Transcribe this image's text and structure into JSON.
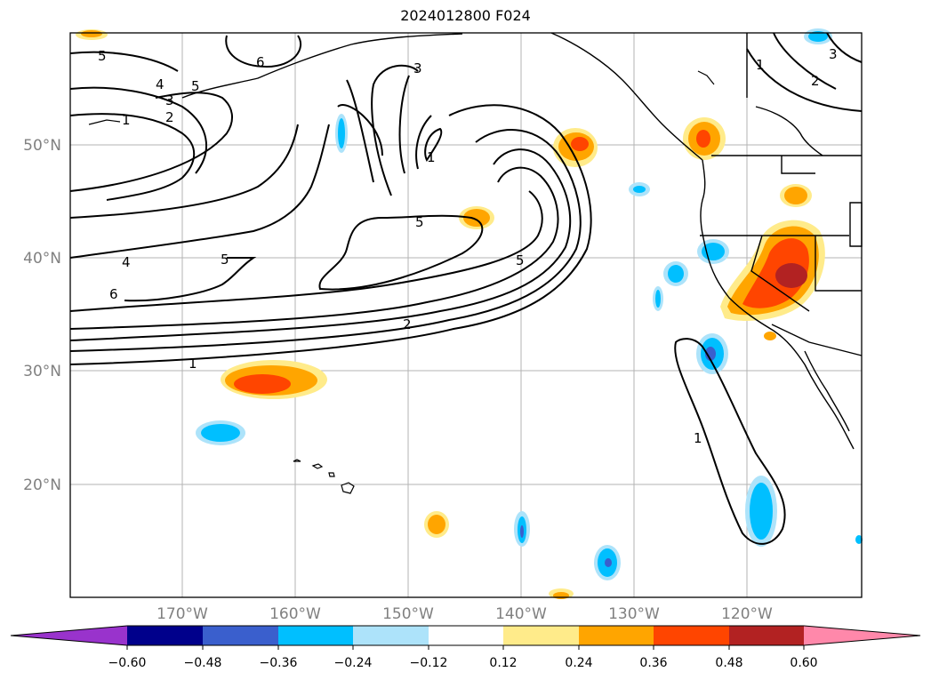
{
  "title": "2024012800 F024",
  "map": {
    "lat_labels": [
      "50°N",
      "40°N",
      "30°N",
      "20°N"
    ],
    "lon_labels": [
      "170°W",
      "160°W",
      "150°W",
      "140°W",
      "130°W",
      "120°W"
    ],
    "contour_labels": [
      "5",
      "6",
      "4",
      "3",
      "2",
      "1",
      "5",
      "4",
      "6",
      "3",
      "1",
      "5",
      "5",
      "5",
      "2",
      "1",
      "1",
      "1",
      "2",
      "3"
    ]
  },
  "colorbar": {
    "tick_labels": [
      "−0.60",
      "−0.48",
      "−0.36",
      "−0.24",
      "−0.12",
      "0.12",
      "0.24",
      "0.36",
      "0.48",
      "0.60"
    ],
    "colors": [
      "#9933cc",
      "#00008b",
      "#3a5fcd",
      "#00bfff",
      "#ade3fa",
      "#ffffff",
      "#ffeb8a",
      "#ffa500",
      "#ff4500",
      "#b22222",
      "#ff88aa"
    ]
  }
}
